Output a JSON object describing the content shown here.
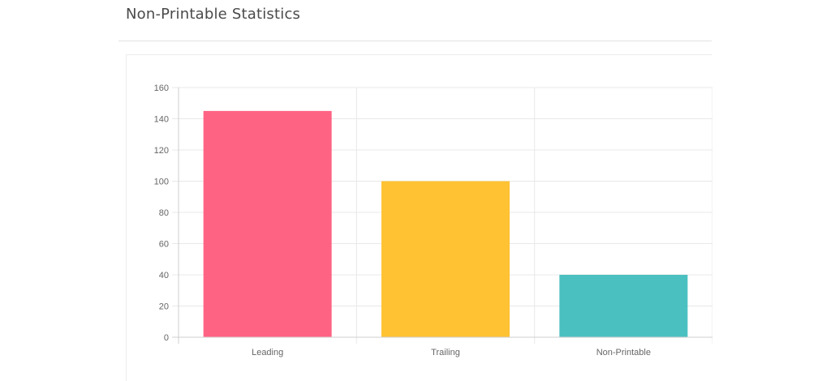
{
  "header": {
    "title": "Non-Printable Statistics"
  },
  "chart_data": {
    "type": "bar",
    "title": "",
    "xlabel": "",
    "ylabel": "",
    "categories": [
      "Leading",
      "Trailing",
      "Non-Printable"
    ],
    "values": [
      145,
      100,
      40
    ],
    "colors": [
      "#ff6384",
      "#ffc233",
      "#4bc0c0"
    ],
    "ylim": [
      0,
      160
    ],
    "yticks": [
      0,
      20,
      40,
      60,
      80,
      100,
      120,
      140,
      160
    ],
    "grid": true,
    "legend": "none"
  }
}
